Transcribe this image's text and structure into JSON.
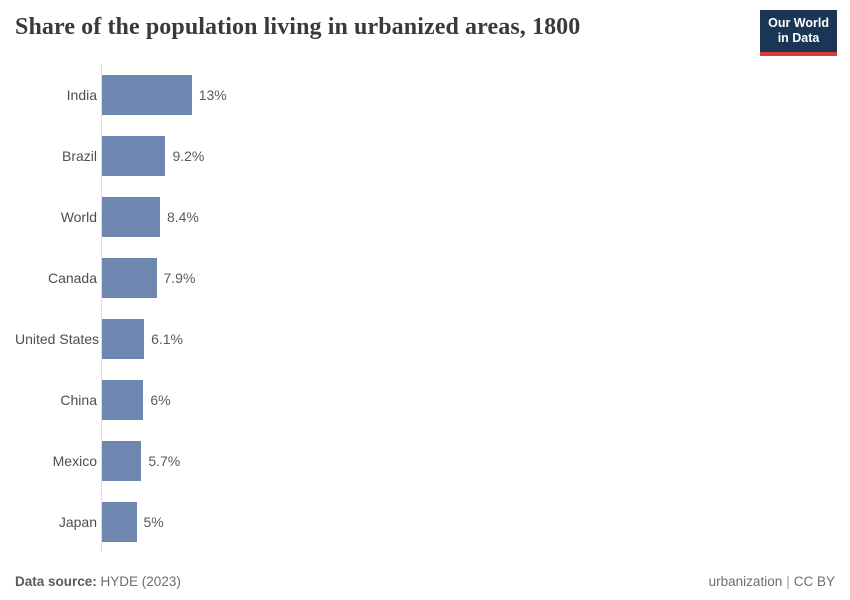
{
  "header": {
    "title": "Share of the population living in urbanized areas, 1800",
    "logo": {
      "line1": "Our World",
      "line2": "in Data"
    }
  },
  "chart_data": {
    "type": "bar",
    "orientation": "horizontal",
    "title": "Share of the population living in urbanized areas, 1800",
    "categories": [
      "India",
      "Brazil",
      "World",
      "Canada",
      "United States",
      "China",
      "Mexico",
      "Japan"
    ],
    "values": [
      13,
      9.2,
      8.4,
      7.9,
      6.1,
      6,
      5.7,
      5
    ],
    "value_labels": [
      "13%",
      "9.2%",
      "8.4%",
      "7.9%",
      "6.1%",
      "6%",
      "5.7%",
      "5%"
    ],
    "unit": "%",
    "xlim": [
      0,
      13
    ],
    "grid": false,
    "legend": "none",
    "axis_line": "left-vertical"
  },
  "footer": {
    "datasource_label": "Data source:",
    "datasource_value": "HYDE (2023)",
    "link_text": "urbanization",
    "separator": "|",
    "license_text": "CC BY"
  },
  "colors": {
    "bar": "#6d87b0",
    "axis_line": "#dddddd",
    "title_text": "#3a3a3a",
    "entity_label": "#4e4e4e",
    "value_label": "#5b5b5b",
    "logo_navy": "#1b3557",
    "logo_red": "#dc3c34",
    "footer_text": "#6e6e6e"
  }
}
